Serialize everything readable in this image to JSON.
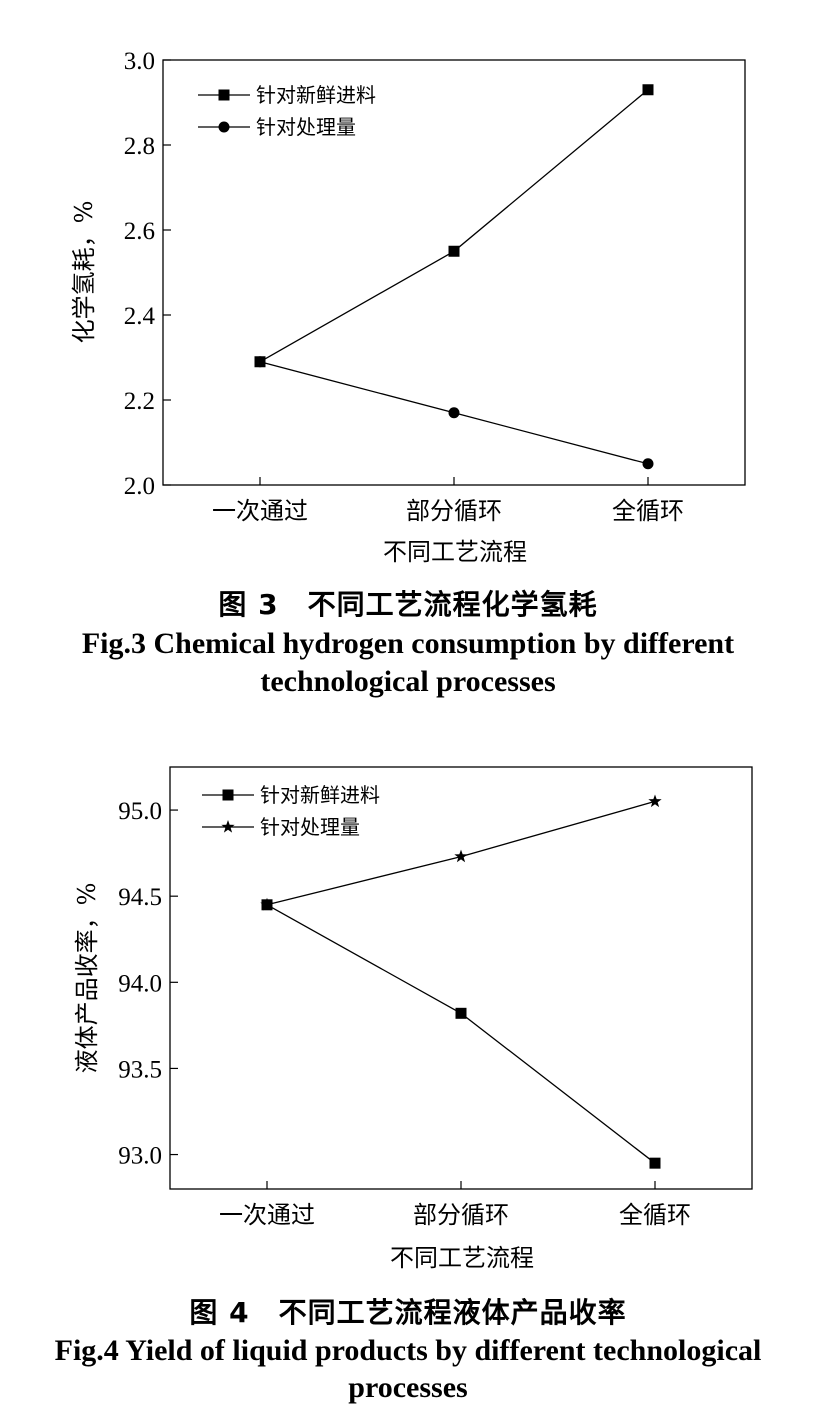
{
  "chart_data": [
    {
      "type": "line",
      "categories": [
        "一次通过",
        "部分循环",
        "全循环"
      ],
      "series": [
        {
          "name": "针对新鲜进料",
          "marker": "square",
          "values": [
            2.29,
            2.55,
            2.93
          ]
        },
        {
          "name": "针对处理量",
          "marker": "circle",
          "values": [
            2.29,
            2.17,
            2.05
          ]
        }
      ],
      "xlabel": "不同工艺流程",
      "ylabel": "化学氢耗，%",
      "ylim": [
        2.0,
        3.0
      ],
      "yticks": [
        "2.0",
        "2.2",
        "2.4",
        "2.6",
        "2.8",
        "3.0"
      ],
      "legend": "top-left",
      "grid": false,
      "caption_cn": "图 3　不同工艺流程化学氢耗",
      "caption_en_line1": "Fig.3 Chemical hydrogen consumption by different",
      "caption_en_line2": "technological processes"
    },
    {
      "type": "line",
      "categories": [
        "一次通过",
        "部分循环",
        "全循环"
      ],
      "series": [
        {
          "name": "针对新鲜进料",
          "marker": "square",
          "values": [
            94.45,
            93.82,
            92.95
          ]
        },
        {
          "name": "针对处理量",
          "marker": "star",
          "values": [
            94.45,
            94.73,
            95.05
          ]
        }
      ],
      "xlabel": "不同工艺流程",
      "ylabel": "液体产品收率，%",
      "ylim": [
        92.8,
        95.25
      ],
      "yticks": [
        "93.0",
        "93.5",
        "94.0",
        "94.5",
        "95.0"
      ],
      "legend": "top-left",
      "grid": false,
      "caption_cn": "图 4　不同工艺流程液体产品收率",
      "caption_en_line1": "Fig.4 Yield of liquid products by different technological",
      "caption_en_line2": "processes"
    }
  ]
}
